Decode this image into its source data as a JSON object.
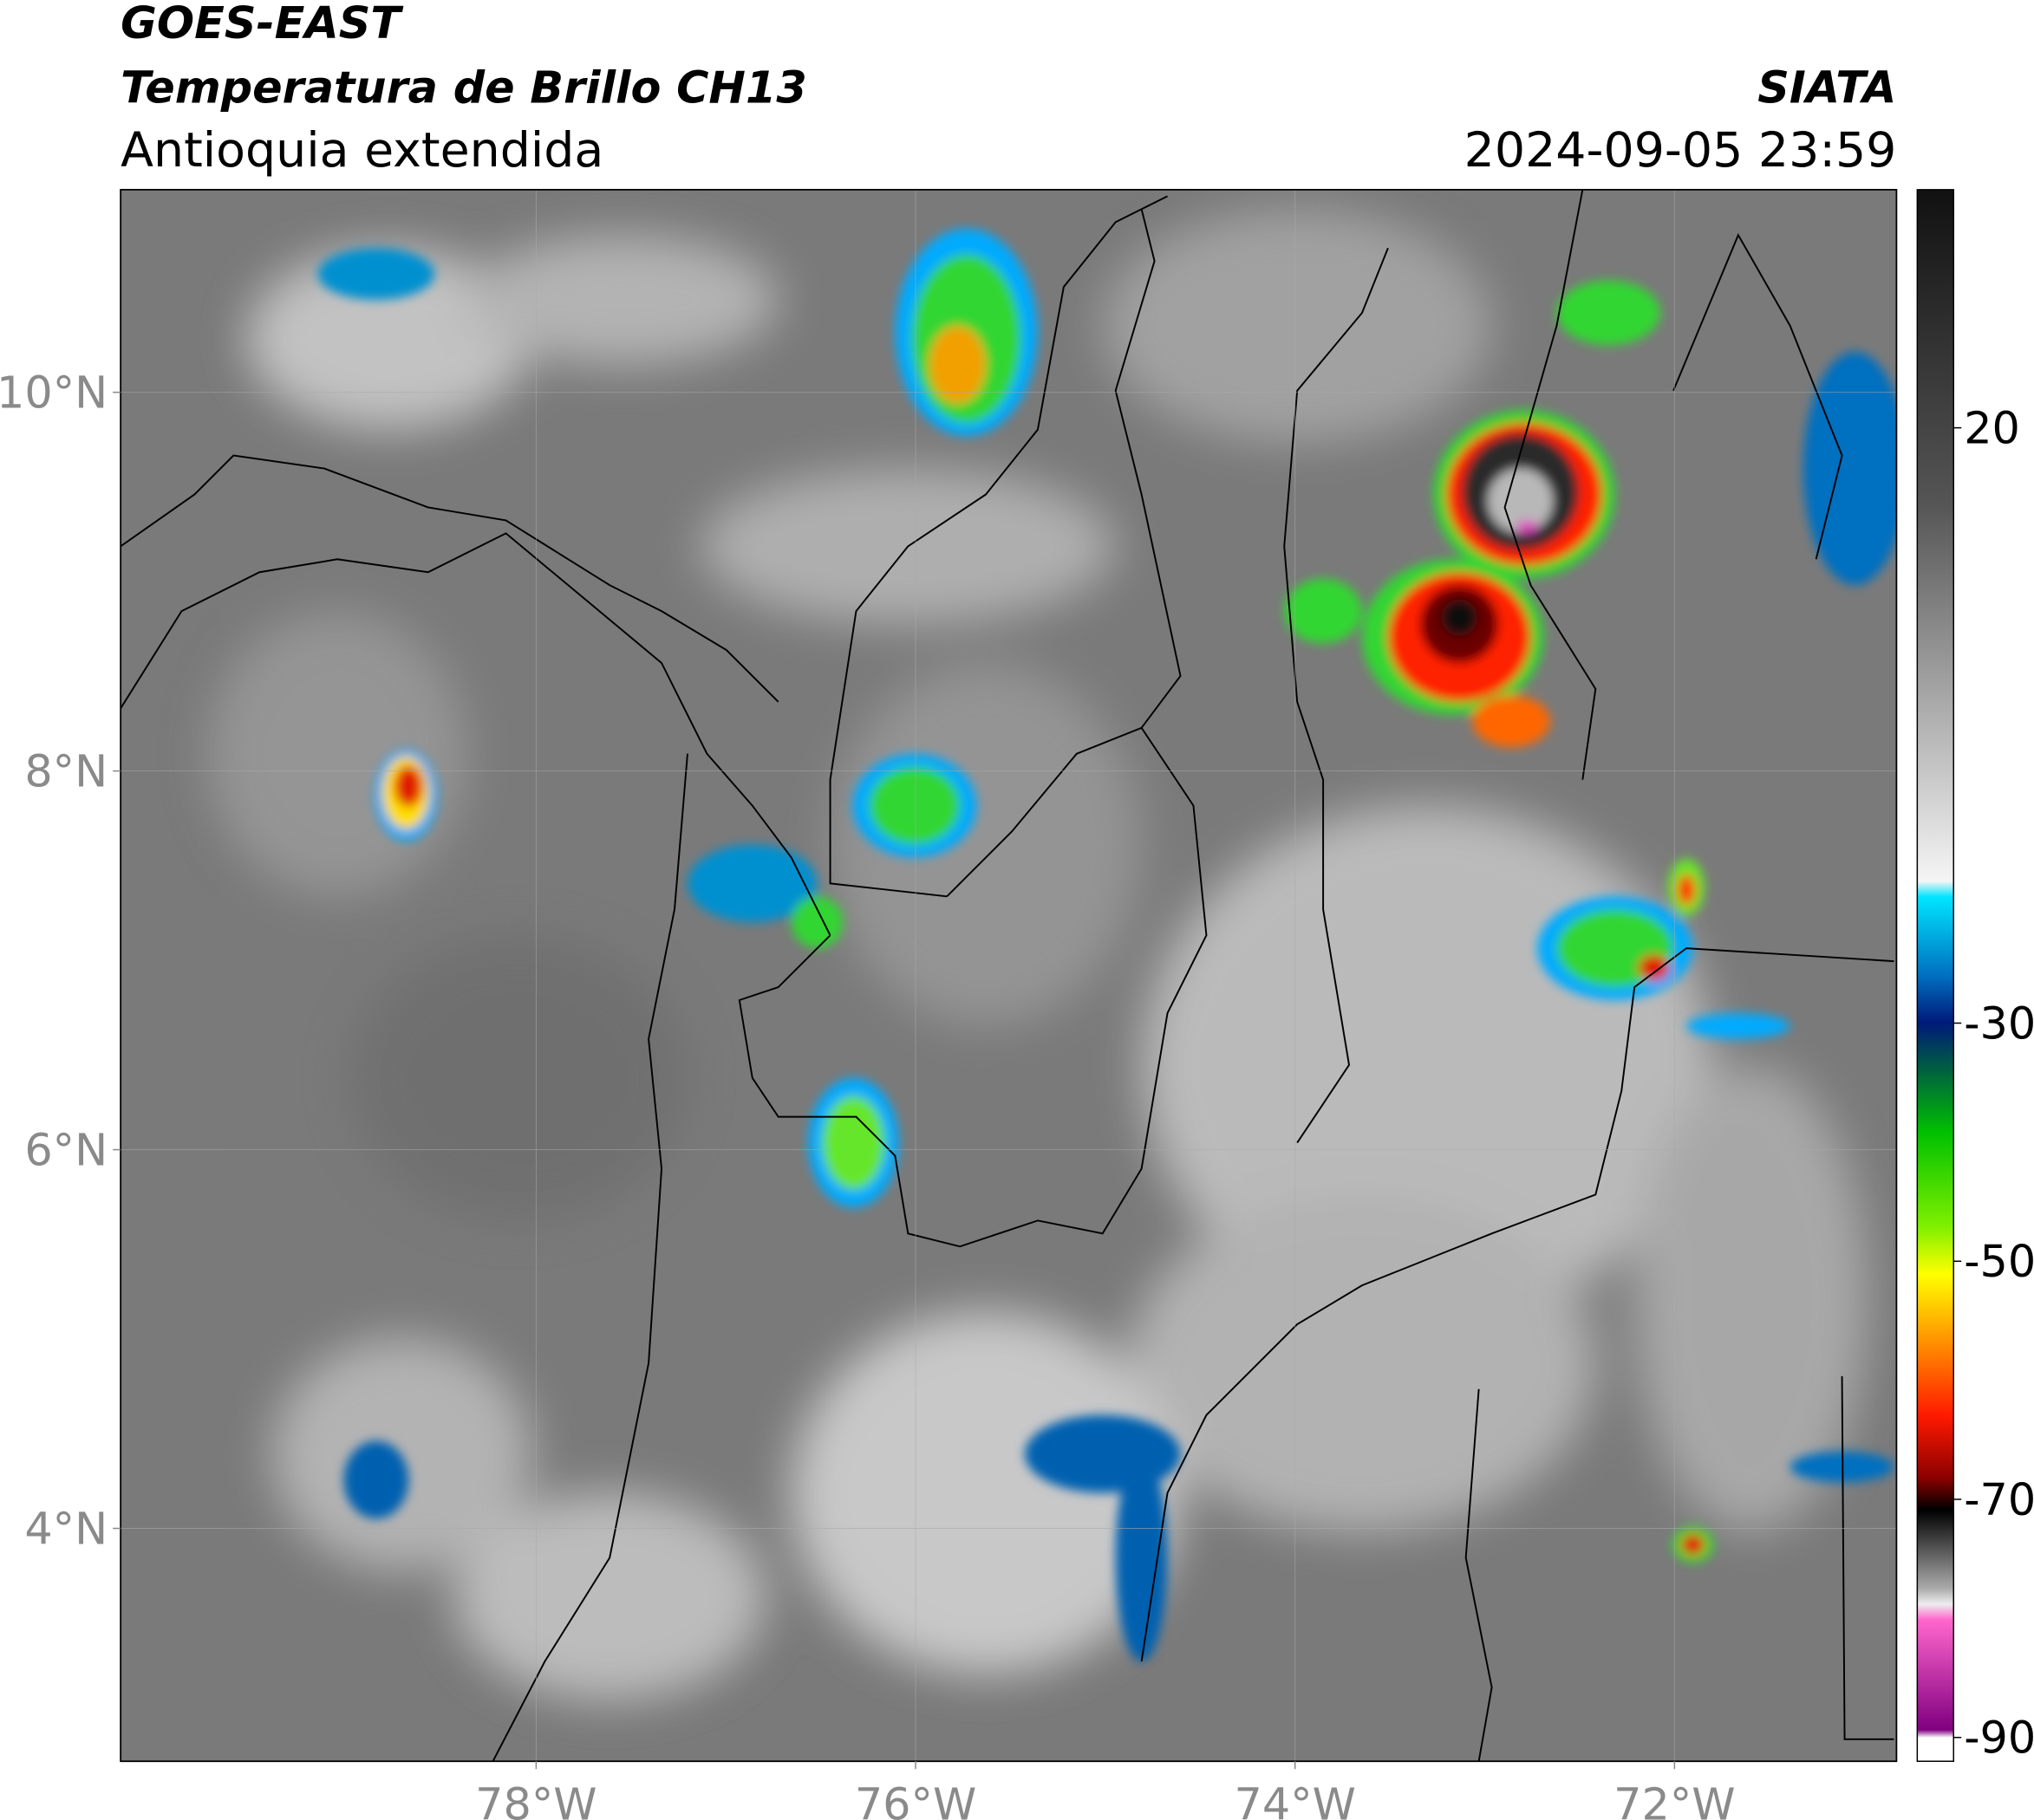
{
  "header": {
    "title": "GOES-EAST",
    "subtitle": "Temperatura de Brillo CH13",
    "region": "Antioquia extendida",
    "source": "SIATA",
    "datetime": "2024-09-05 23:59"
  },
  "map": {
    "xlim": [
      -80.19,
      -70.83
    ],
    "ylim": [
      2.77,
      11.07
    ],
    "xticks": [
      {
        "value": -78,
        "label": "78°W"
      },
      {
        "value": -76,
        "label": "76°W"
      },
      {
        "value": -74,
        "label": "74°W"
      },
      {
        "value": -72,
        "label": "72°W"
      }
    ],
    "yticks": [
      {
        "value": 4,
        "label": "4°N"
      },
      {
        "value": 6,
        "label": "6°N"
      },
      {
        "value": 8,
        "label": "8°N"
      },
      {
        "value": 10,
        "label": "10°N"
      }
    ],
    "grid": true
  },
  "colorbar": {
    "clim": [
      -92,
      40
    ],
    "ticks": [
      20,
      -30,
      -50,
      -70,
      -90
    ]
  }
}
